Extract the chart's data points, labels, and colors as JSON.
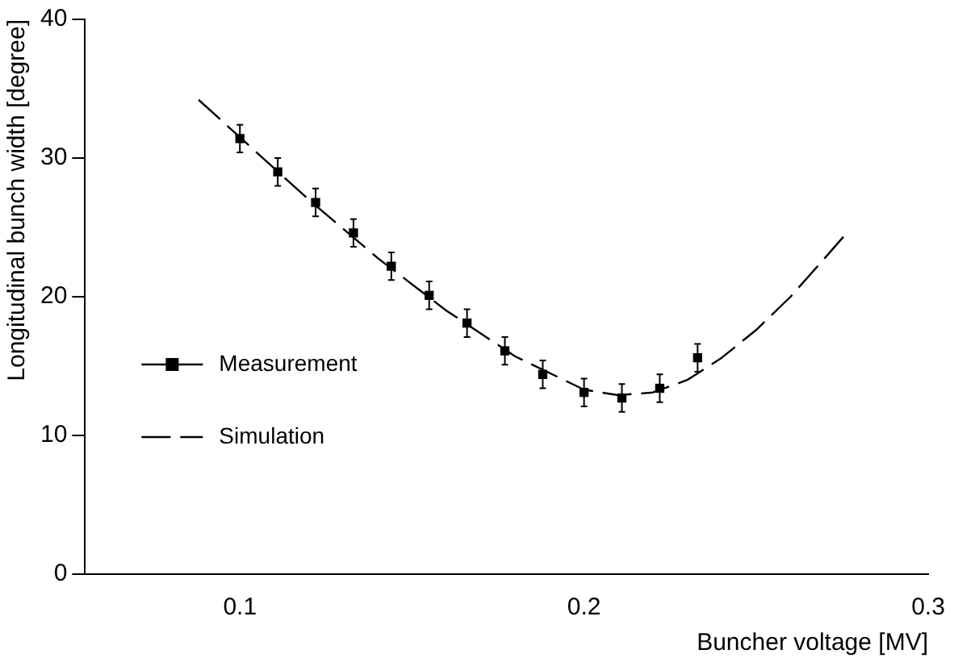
{
  "chart_data": {
    "type": "scatter",
    "xlabel": "Buncher voltage [MV]",
    "ylabel": "Longitudinal bunch width [degree]",
    "xlim": [
      0.055,
      0.3
    ],
    "xticks": [
      0.1,
      0.2,
      0.3
    ],
    "ylim": [
      0,
      40
    ],
    "yticks": [
      0,
      10,
      20,
      30,
      40
    ],
    "grid": false,
    "legend": "bottom left",
    "series": [
      {
        "name": "Measurement",
        "marker": "square",
        "line_style": "solid",
        "color": "#000000",
        "x": [
          0.1,
          0.111,
          0.122,
          0.133,
          0.144,
          0.155,
          0.166,
          0.177,
          0.188,
          0.2,
          0.211,
          0.222,
          0.233
        ],
        "values": [
          31.4,
          29.0,
          26.8,
          24.6,
          22.2,
          20.1,
          18.1,
          16.1,
          14.4,
          13.1,
          12.7,
          13.4,
          15.6
        ],
        "errors": [
          1,
          1,
          1,
          1,
          1,
          1,
          1,
          1,
          1,
          1,
          1,
          1,
          1
        ]
      },
      {
        "name": "Simulation",
        "type": "line",
        "marker": "none",
        "line_style": "dashed",
        "color": "#000000",
        "x": [
          0.088,
          0.1,
          0.12,
          0.14,
          0.16,
          0.18,
          0.2,
          0.21,
          0.22,
          0.23,
          0.24,
          0.25,
          0.26,
          0.27,
          0.276
        ],
        "values": [
          34.2,
          31.5,
          27.0,
          22.8,
          19.0,
          15.7,
          13.3,
          12.9,
          13.1,
          14.0,
          15.6,
          17.6,
          20.0,
          22.8,
          24.5
        ]
      }
    ]
  }
}
